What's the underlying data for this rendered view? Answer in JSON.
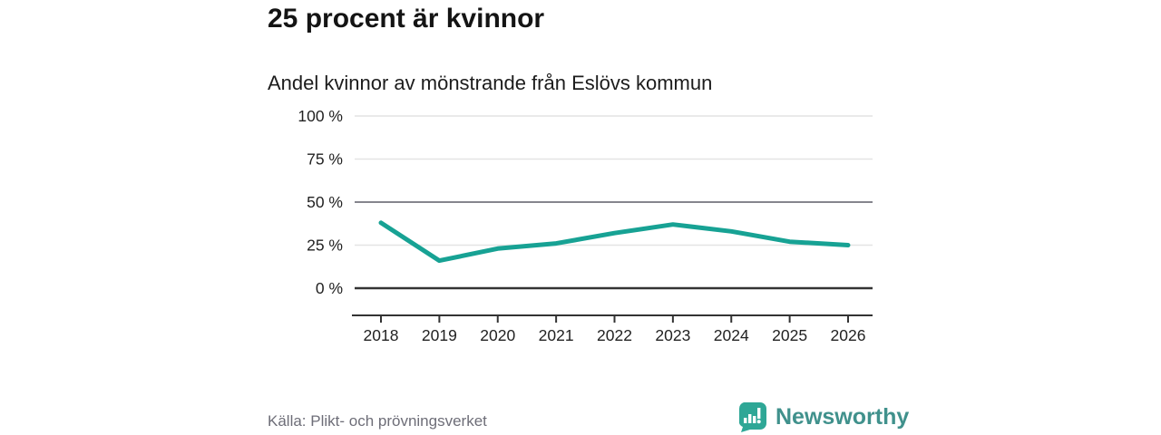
{
  "header": {
    "title": "25 procent är kvinnor",
    "subtitle": "Andel kvinnor av mönstrande från Eslövs kommun"
  },
  "footer": {
    "source": "Källa: Plikt- och prövningsverket",
    "logo_text": "Newsworthy"
  },
  "colors": {
    "line": "#17a294",
    "grid_light": "#e4e4e4",
    "grid_mid": "#85858d",
    "axis": "#333333",
    "tick_text": "#222222",
    "logo_icon": "#2ea796",
    "logo_text": "#40918c",
    "source_text": "#6e6e78"
  },
  "chart_data": {
    "type": "line",
    "title": "25 procent är kvinnor",
    "subtitle": "Andel kvinnor av mönstrande från Eslövs kommun",
    "x": [
      "2018",
      "2019",
      "2020",
      "2021",
      "2022",
      "2023",
      "2024",
      "2025",
      "2026"
    ],
    "values": [
      38,
      16,
      23,
      26,
      32,
      37,
      33,
      27,
      25
    ],
    "series_name": "Andel kvinnor av mönstrande (%)",
    "ylim": [
      0,
      100
    ],
    "y_ticks": [
      {
        "value": 0,
        "label": "0 %"
      },
      {
        "value": 25,
        "label": "25 %"
      },
      {
        "value": 50,
        "label": "50 %"
      },
      {
        "value": 75,
        "label": "75 %"
      },
      {
        "value": 100,
        "label": "100 %"
      }
    ],
    "grid": true,
    "legend": false
  }
}
